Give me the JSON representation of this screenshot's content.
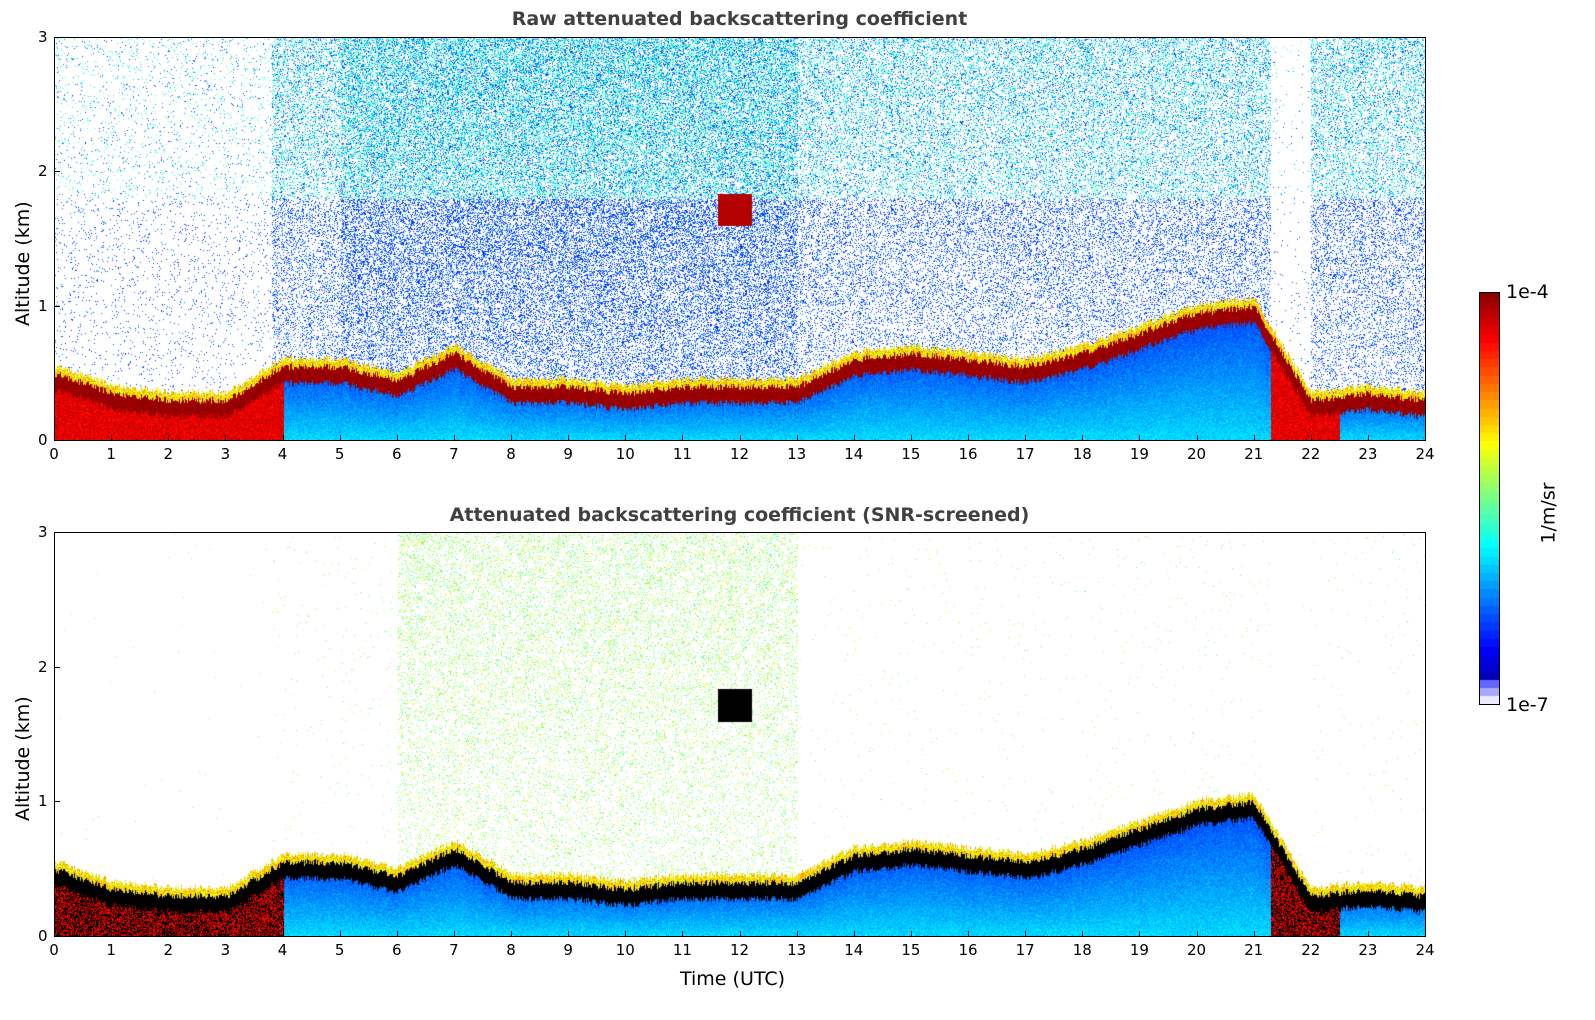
{
  "chart_data": [
    {
      "type": "heatmap",
      "title": "Raw attenuated backscattering coefficient",
      "xlabel": "",
      "ylabel": "Altitude (km)",
      "xlim": [
        0,
        24
      ],
      "ylim": [
        0,
        3
      ],
      "xticks": [
        "0",
        "1",
        "2",
        "3",
        "4",
        "5",
        "6",
        "7",
        "8",
        "9",
        "10",
        "11",
        "12",
        "13",
        "14",
        "15",
        "16",
        "17",
        "18",
        "19",
        "20",
        "21",
        "22",
        "23",
        "24"
      ],
      "yticks": [
        "0",
        "1",
        "2",
        "3"
      ],
      "screened": false
    },
    {
      "type": "heatmap",
      "title": "Attenuated backscattering coefficient (SNR-screened)",
      "xlabel": "Time (UTC)",
      "ylabel": "Altitude (km)",
      "xlim": [
        0,
        24
      ],
      "ylim": [
        0,
        3
      ],
      "xticks": [
        "0",
        "1",
        "2",
        "3",
        "4",
        "5",
        "6",
        "7",
        "8",
        "9",
        "10",
        "11",
        "12",
        "13",
        "14",
        "15",
        "16",
        "17",
        "18",
        "19",
        "20",
        "21",
        "22",
        "23",
        "24"
      ],
      "yticks": [
        "0",
        "1",
        "2",
        "3"
      ],
      "screened": true
    }
  ],
  "layer_top_km": {
    "hours": [
      0,
      1,
      2,
      3,
      4,
      5,
      6,
      7,
      8,
      9,
      10,
      11,
      12,
      13,
      14,
      15,
      16,
      17,
      18,
      19,
      20,
      21,
      22,
      23,
      24
    ],
    "height": [
      0.5,
      0.35,
      0.3,
      0.3,
      0.55,
      0.55,
      0.45,
      0.65,
      0.4,
      0.4,
      0.35,
      0.4,
      0.4,
      0.4,
      0.6,
      0.65,
      0.6,
      0.55,
      0.65,
      0.8,
      0.95,
      1.0,
      0.3,
      0.35,
      0.3
    ]
  },
  "cloud": {
    "start_hour": 11.6,
    "end_hour": 12.2,
    "altitude_km": 1.72
  },
  "colorbar": {
    "label": "1/m/sr",
    "max_label": "1e-4",
    "min_label": "1e-7",
    "log_range": [
      -7,
      -4
    ],
    "colormap": "jet"
  }
}
